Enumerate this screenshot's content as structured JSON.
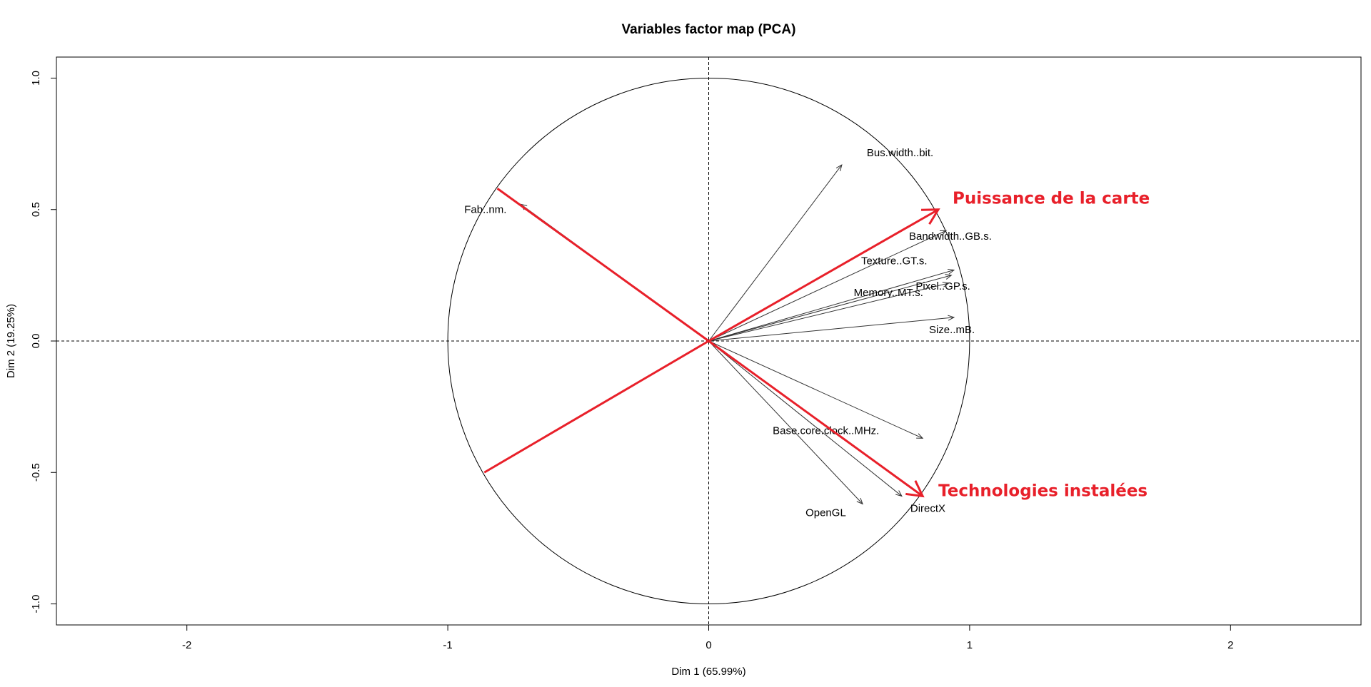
{
  "chart_data": {
    "type": "scatter",
    "title": "Variables factor map (PCA)",
    "xlabel": "Dim 1 (65.99%)",
    "ylabel": "Dim 2 (19.25%)",
    "xlim": [
      -2.5,
      2.5
    ],
    "ylim": [
      -1.08,
      1.08
    ],
    "x_ticks": [
      -2,
      -1,
      0,
      1,
      2
    ],
    "x_tick_labels": [
      "-2",
      "-1",
      "0",
      "1",
      "2"
    ],
    "y_ticks": [
      -1.0,
      -0.5,
      0.0,
      0.5,
      1.0
    ],
    "y_tick_labels": [
      "-1.0",
      "-0.5",
      "0.0",
      "0.5",
      "1.0"
    ],
    "grid": false,
    "unit_circle": true,
    "variables": [
      {
        "name": "Bus.width..bit.",
        "x": 0.51,
        "y": 0.67
      },
      {
        "name": "Fab..nm.",
        "x": -0.72,
        "y": 0.52
      },
      {
        "name": "Bandwidth..GB.s.",
        "x": 0.91,
        "y": 0.42
      },
      {
        "name": "Texture..GT.s.",
        "x": 0.94,
        "y": 0.27
      },
      {
        "name": "Pixel..GP.s.",
        "x": 0.93,
        "y": 0.25
      },
      {
        "name": "Memory..MT.s.",
        "x": 0.92,
        "y": 0.22
      },
      {
        "name": "Size..mB.",
        "x": 0.94,
        "y": 0.09
      },
      {
        "name": "Base.core.clock..MHz.",
        "x": 0.82,
        "y": -0.37
      },
      {
        "name": "DirectX",
        "x": 0.74,
        "y": -0.59
      },
      {
        "name": "OpenGL",
        "x": 0.59,
        "y": -0.62
      }
    ],
    "annotation_lines": [
      {
        "x1": -0.81,
        "y1": 0.58,
        "x2": 0.0,
        "y2": 0.0
      },
      {
        "x1": -0.86,
        "y1": -0.5,
        "x2": 0.0,
        "y2": 0.0
      }
    ],
    "annotation_arrows": [
      {
        "label": "Puissance de la carte",
        "x": 0.88,
        "y": 0.5
      },
      {
        "label": "Technologies instalées",
        "x": 0.82,
        "y": -0.59
      }
    ],
    "colors": {
      "axes": "#000000",
      "variables": "#333333",
      "annotation": "#e8202a"
    }
  }
}
